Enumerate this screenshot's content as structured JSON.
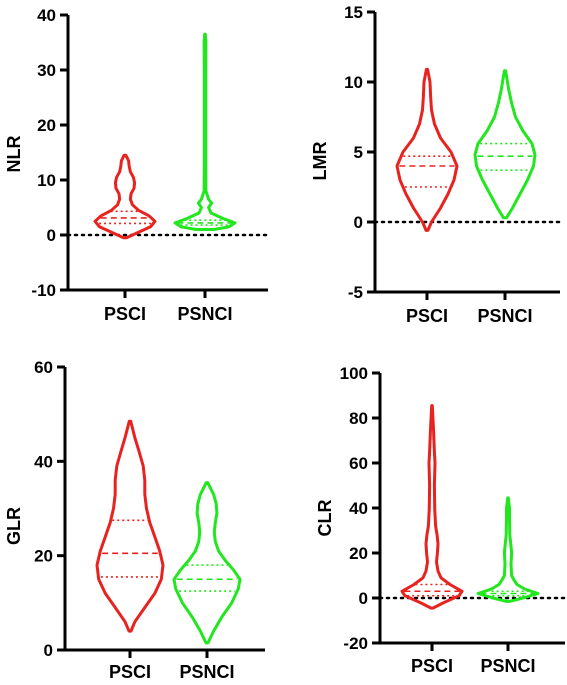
{
  "colors": {
    "PSCI": "#e8231f",
    "PSNCI": "#22e61e",
    "axis": "#000000"
  },
  "chart_data": [
    {
      "type": "violin",
      "ylabel": "NLR",
      "ylim": [
        -10,
        40
      ],
      "yticks": [
        -10,
        0,
        10,
        20,
        30,
        40
      ],
      "reference_line": 0,
      "categories": [
        "PSCI",
        "PSNCI"
      ],
      "series": [
        {
          "name": "PSCI",
          "min": -0.5,
          "max": 14.5,
          "q1": 2.1,
          "median": 3.1,
          "q3": 4.3,
          "profile": [
            [
              -0.5,
              0.05
            ],
            [
              0.5,
              0.45
            ],
            [
              1.5,
              0.85
            ],
            [
              2.5,
              1.0
            ],
            [
              3.5,
              0.8
            ],
            [
              4.5,
              0.45
            ],
            [
              5.5,
              0.25
            ],
            [
              6.5,
              0.18
            ],
            [
              7.5,
              0.2
            ],
            [
              8.5,
              0.3
            ],
            [
              9.5,
              0.32
            ],
            [
              10.5,
              0.28
            ],
            [
              11.5,
              0.18
            ],
            [
              12.5,
              0.14
            ],
            [
              13.5,
              0.12
            ],
            [
              14.5,
              0.03
            ]
          ]
        },
        {
          "name": "PSNCI",
          "min": 1.0,
          "max": 36.5,
          "q1": 1.8,
          "median": 2.2,
          "q3": 2.7,
          "profile": [
            [
              1.0,
              0.3
            ],
            [
              1.5,
              0.8
            ],
            [
              2.2,
              1.0
            ],
            [
              3.0,
              0.6
            ],
            [
              4.0,
              0.2
            ],
            [
              5.0,
              0.12
            ],
            [
              5.8,
              0.22
            ],
            [
              6.5,
              0.12
            ],
            [
              8,
              0.03
            ],
            [
              12,
              0.025
            ],
            [
              20,
              0.025
            ],
            [
              30,
              0.025
            ],
            [
              35,
              0.03
            ],
            [
              36.5,
              0.01
            ]
          ]
        }
      ]
    },
    {
      "type": "violin",
      "ylabel": "LMR",
      "ylim": [
        -5,
        15
      ],
      "yticks": [
        -5,
        0,
        5,
        10,
        15
      ],
      "reference_line": 0,
      "categories": [
        "PSCI",
        "PSNCI"
      ],
      "series": [
        {
          "name": "PSCI",
          "min": -0.6,
          "max": 10.9,
          "q1": 2.5,
          "median": 4.0,
          "q3": 4.7,
          "profile": [
            [
              -0.6,
              0.03
            ],
            [
              0,
              0.15
            ],
            [
              1,
              0.45
            ],
            [
              2,
              0.7
            ],
            [
              3,
              0.9
            ],
            [
              4,
              1.0
            ],
            [
              5,
              0.8
            ],
            [
              6,
              0.45
            ],
            [
              7,
              0.25
            ],
            [
              8,
              0.15
            ],
            [
              9,
              0.12
            ],
            [
              10,
              0.1
            ],
            [
              10.9,
              0.02
            ]
          ]
        },
        {
          "name": "PSNCI",
          "min": 0.3,
          "max": 10.8,
          "q1": 3.7,
          "median": 4.7,
          "q3": 5.6,
          "profile": [
            [
              0.3,
              0.05
            ],
            [
              1,
              0.25
            ],
            [
              2,
              0.5
            ],
            [
              3,
              0.75
            ],
            [
              4,
              0.95
            ],
            [
              4.8,
              1.0
            ],
            [
              5.6,
              0.9
            ],
            [
              6.5,
              0.6
            ],
            [
              7.5,
              0.35
            ],
            [
              8.5,
              0.22
            ],
            [
              9.5,
              0.12
            ],
            [
              10.8,
              0.02
            ]
          ]
        }
      ]
    },
    {
      "type": "violin",
      "ylabel": "GLR",
      "ylim": [
        0,
        60
      ],
      "yticks": [
        0,
        20,
        40,
        60
      ],
      "reference_line": null,
      "categories": [
        "PSCI",
        "PSNCI"
      ],
      "series": [
        {
          "name": "PSCI",
          "min": 4.0,
          "max": 48.5,
          "q1": 15.5,
          "median": 20.5,
          "q3": 27.5,
          "profile": [
            [
              4,
              0.03
            ],
            [
              6,
              0.15
            ],
            [
              9,
              0.45
            ],
            [
              12,
              0.75
            ],
            [
              15,
              0.95
            ],
            [
              18,
              1.0
            ],
            [
              21,
              0.9
            ],
            [
              24,
              0.75
            ],
            [
              27,
              0.6
            ],
            [
              30,
              0.5
            ],
            [
              33,
              0.45
            ],
            [
              36,
              0.45
            ],
            [
              39,
              0.4
            ],
            [
              42,
              0.28
            ],
            [
              45,
              0.15
            ],
            [
              48.5,
              0.02
            ]
          ]
        },
        {
          "name": "PSNCI",
          "min": 1.5,
          "max": 35.5,
          "q1": 12.5,
          "median": 15.0,
          "q3": 18.0,
          "profile": [
            [
              1.5,
              0.03
            ],
            [
              4,
              0.2
            ],
            [
              7,
              0.45
            ],
            [
              10,
              0.75
            ],
            [
              13,
              0.95
            ],
            [
              15,
              1.0
            ],
            [
              17,
              0.8
            ],
            [
              19,
              0.55
            ],
            [
              21,
              0.35
            ],
            [
              23,
              0.25
            ],
            [
              25,
              0.22
            ],
            [
              27,
              0.25
            ],
            [
              29,
              0.3
            ],
            [
              31,
              0.28
            ],
            [
              33,
              0.2
            ],
            [
              35.5,
              0.02
            ]
          ]
        }
      ]
    },
    {
      "type": "violin",
      "ylabel": "CLR",
      "ylim": [
        -20,
        100
      ],
      "yticks": [
        -20,
        0,
        20,
        40,
        60,
        80,
        100
      ],
      "reference_line": 0,
      "categories": [
        "PSCI",
        "PSNCI"
      ],
      "series": [
        {
          "name": "PSCI",
          "min": -4.5,
          "max": 85.5,
          "q1": 1.0,
          "median": 3.0,
          "q3": 6.0,
          "profile": [
            [
              -4.5,
              0.03
            ],
            [
              -2,
              0.4
            ],
            [
              1,
              0.9
            ],
            [
              3,
              1.0
            ],
            [
              6,
              0.6
            ],
            [
              9,
              0.3
            ],
            [
              12,
              0.2
            ],
            [
              16,
              0.15
            ],
            [
              20,
              0.18
            ],
            [
              24,
              0.2
            ],
            [
              28,
              0.17
            ],
            [
              32,
              0.12
            ],
            [
              40,
              0.09
            ],
            [
              50,
              0.08
            ],
            [
              60,
              0.1
            ],
            [
              65,
              0.08
            ],
            [
              75,
              0.05
            ],
            [
              85.5,
              0.01
            ]
          ]
        },
        {
          "name": "PSNCI",
          "min": -1.5,
          "max": 44.5,
          "q1": 1.0,
          "median": 2.0,
          "q3": 3.0,
          "profile": [
            [
              -1.5,
              0.05
            ],
            [
              0,
              0.5
            ],
            [
              2,
              1.0
            ],
            [
              4,
              0.55
            ],
            [
              6,
              0.3
            ],
            [
              8,
              0.2
            ],
            [
              10,
              0.12
            ],
            [
              15,
              0.1
            ],
            [
              20,
              0.12
            ],
            [
              23,
              0.1
            ],
            [
              28,
              0.06
            ],
            [
              35,
              0.05
            ],
            [
              40,
              0.05
            ],
            [
              44.5,
              0.01
            ]
          ]
        }
      ]
    }
  ]
}
